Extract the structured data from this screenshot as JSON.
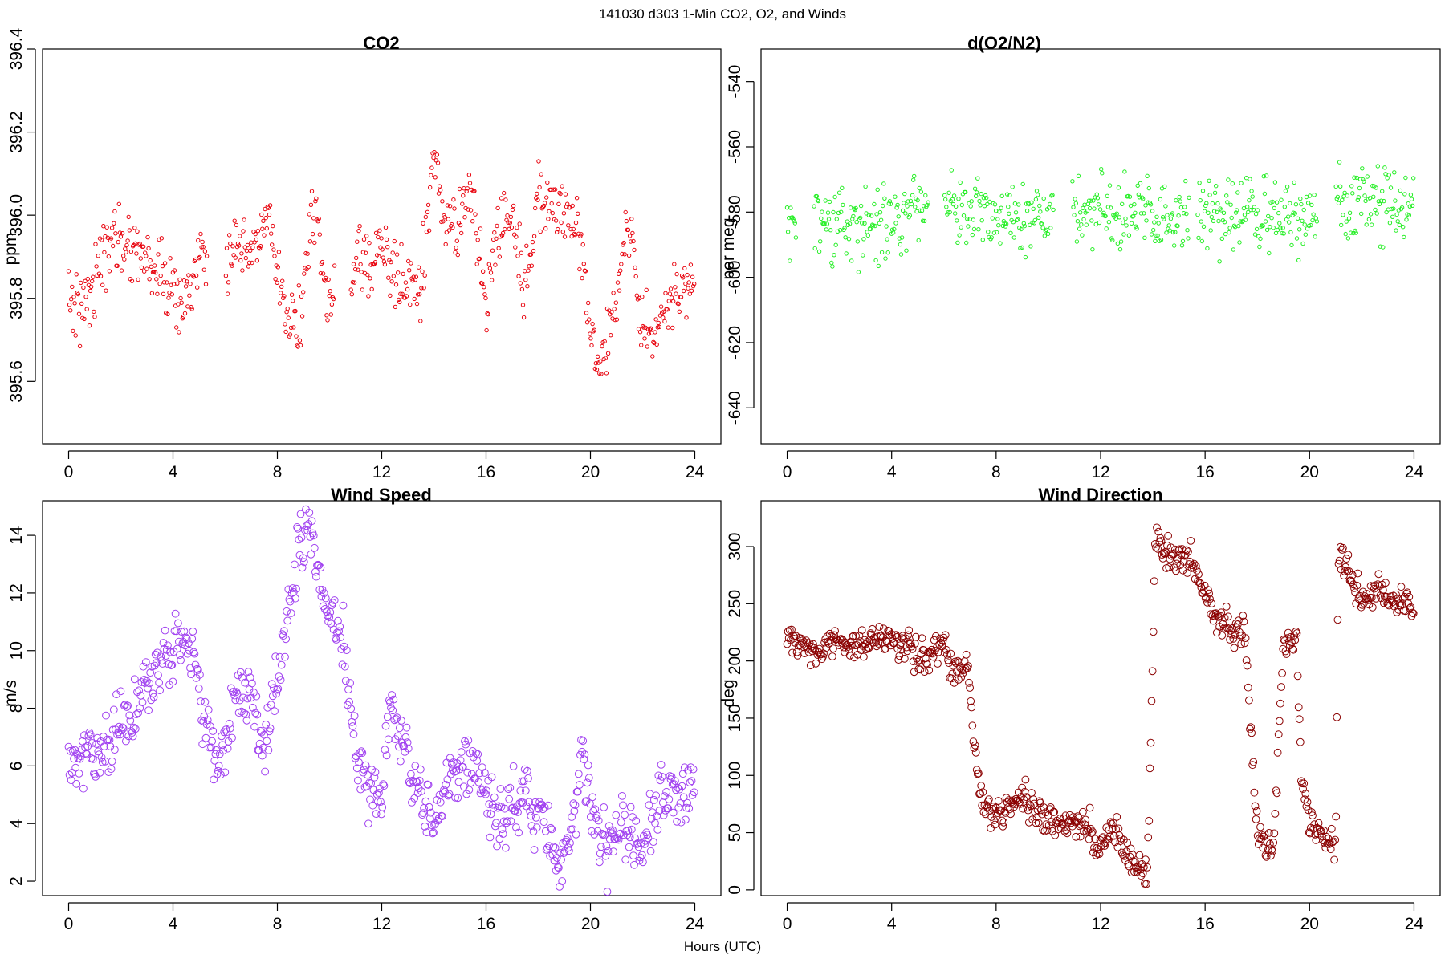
{
  "figure": {
    "title": "141030   d303   1-Min CO2, O2, and Winds",
    "xlabel": "Hours (UTC)"
  },
  "chart_data": [
    {
      "type": "scatter",
      "title": "CO2",
      "xlabel": "",
      "ylabel": "ppm",
      "xlim": [
        -1,
        25
      ],
      "ylim": [
        395.45,
        396.4
      ],
      "xticks": [
        0,
        4,
        8,
        12,
        16,
        20,
        24
      ],
      "yticks": [
        395.6,
        395.8,
        396.0,
        396.2,
        396.4
      ],
      "ytick_labels": [
        "395.6",
        "395.8",
        "396.0",
        "396.2",
        "396.4"
      ],
      "ytick_rotated": true,
      "marker": "small open circle",
      "color": "#e8000b",
      "x_start": 0,
      "x_end": 24,
      "x_step": 0.0333,
      "noise": 0.04,
      "gaps": [
        [
          5.3,
          6.0
        ],
        [
          10.2,
          10.8
        ]
      ],
      "profile": [
        [
          0,
          395.8
        ],
        [
          0.5,
          395.78
        ],
        [
          1,
          395.85
        ],
        [
          1.7,
          395.95
        ],
        [
          2.5,
          395.93
        ],
        [
          3.5,
          395.86
        ],
        [
          4.3,
          395.78
        ],
        [
          4.8,
          395.85
        ],
        [
          5.2,
          395.9
        ],
        [
          6,
          395.9
        ],
        [
          7,
          395.9
        ],
        [
          7.6,
          396.0
        ],
        [
          8.2,
          395.78
        ],
        [
          8.8,
          395.72
        ],
        [
          9.4,
          396.05
        ],
        [
          9.8,
          395.8
        ],
        [
          10.2,
          395.8
        ],
        [
          10.8,
          395.85
        ],
        [
          11.5,
          395.9
        ],
        [
          12.2,
          395.9
        ],
        [
          12.8,
          395.83
        ],
        [
          13.5,
          395.82
        ],
        [
          14,
          396.15
        ],
        [
          14.5,
          395.95
        ],
        [
          15,
          396.0
        ],
        [
          15.5,
          396.05
        ],
        [
          16,
          395.75
        ],
        [
          16.5,
          396.0
        ],
        [
          17,
          396.0
        ],
        [
          17.5,
          395.82
        ],
        [
          18,
          396.05
        ],
        [
          19,
          396.0
        ],
        [
          19.5,
          396.0
        ],
        [
          20,
          395.72
        ],
        [
          20.3,
          395.6
        ],
        [
          21.5,
          396.0
        ],
        [
          22,
          395.72
        ],
        [
          22.5,
          395.72
        ],
        [
          23,
          395.78
        ],
        [
          24,
          395.85
        ]
      ]
    },
    {
      "type": "scatter",
      "title": "d(O2/N2)",
      "xlabel": "",
      "ylabel": "per meg",
      "xlim": [
        -1,
        25
      ],
      "ylim": [
        -651,
        -530
      ],
      "xticks": [
        0,
        4,
        8,
        12,
        16,
        20,
        24
      ],
      "yticks": [
        -640,
        -620,
        -600,
        -580,
        -560,
        -540
      ],
      "ytick_labels": [
        "-640",
        "-620",
        "-600",
        "-580",
        "-560",
        "-540"
      ],
      "ytick_rotated": true,
      "marker": "small open circle",
      "color": "#22ee22",
      "x_start": 0,
      "x_end": 24,
      "x_step": 0.0333,
      "noise": 5.5,
      "gaps": [
        [
          0.35,
          1.0
        ],
        [
          5.4,
          6.0
        ],
        [
          10.2,
          10.9
        ],
        [
          15.4,
          15.7
        ],
        [
          20.3,
          21.0
        ]
      ],
      "profile": [
        [
          0,
          -582
        ],
        [
          1,
          -585
        ],
        [
          3,
          -584
        ],
        [
          4.5,
          -580
        ],
        [
          5.4,
          -576
        ],
        [
          6,
          -575
        ],
        [
          7,
          -579
        ],
        [
          10,
          -582
        ],
        [
          11,
          -580
        ],
        [
          15.4,
          -582
        ],
        [
          15.7,
          -581
        ],
        [
          20.3,
          -582
        ],
        [
          21,
          -578
        ],
        [
          24,
          -578
        ]
      ]
    },
    {
      "type": "scatter",
      "title": "Wind Speed",
      "xlabel": "",
      "ylabel": "m/s",
      "xlim": [
        -1,
        25
      ],
      "ylim": [
        1.5,
        15.2
      ],
      "xticks": [
        0,
        4,
        8,
        12,
        16,
        20,
        24
      ],
      "yticks": [
        2,
        4,
        6,
        8,
        10,
        12,
        14
      ],
      "ytick_labels": [
        "2",
        "4",
        "6",
        "8",
        "10",
        "12",
        "14"
      ],
      "ytick_rotated": true,
      "marker": "open circle",
      "color": "#a040f0",
      "x_start": 0,
      "x_end": 24,
      "x_step": 0.0333,
      "noise": 0.55,
      "gaps": [],
      "profile": [
        [
          0,
          6
        ],
        [
          1,
          6.3
        ],
        [
          2,
          7.2
        ],
        [
          3,
          8.6
        ],
        [
          4,
          10
        ],
        [
          4.2,
          11
        ],
        [
          4.8,
          9.5
        ],
        [
          5.3,
          7.2
        ],
        [
          5.8,
          6
        ],
        [
          6.5,
          8.8
        ],
        [
          7,
          8.2
        ],
        [
          7.5,
          6.5
        ],
        [
          8,
          9
        ],
        [
          8.3,
          11
        ],
        [
          8.8,
          13.5
        ],
        [
          9.2,
          14.2
        ],
        [
          9.6,
          12.5
        ],
        [
          10,
          11.5
        ],
        [
          10.5,
          10.5
        ],
        [
          11,
          6.5
        ],
        [
          11.5,
          5.5
        ],
        [
          12,
          4.5
        ],
        [
          12.3,
          8.5
        ],
        [
          12.8,
          7
        ],
        [
          13.5,
          4.5
        ],
        [
          14,
          4
        ],
        [
          14.5,
          5.5
        ],
        [
          15,
          6
        ],
        [
          15.5,
          6
        ],
        [
          16,
          5
        ],
        [
          16.5,
          4.2
        ],
        [
          17,
          4.5
        ],
        [
          17.5,
          4.8
        ],
        [
          18,
          4.2
        ],
        [
          18.5,
          3.5
        ],
        [
          18.8,
          2.3
        ],
        [
          19.3,
          4
        ],
        [
          19.7,
          6.5
        ],
        [
          20.2,
          4
        ],
        [
          20.6,
          2.8
        ],
        [
          21,
          3.5
        ],
        [
          21.5,
          3.8
        ],
        [
          22,
          3
        ],
        [
          22.5,
          4.5
        ],
        [
          23,
          5
        ],
        [
          23.5,
          5
        ],
        [
          24,
          5.5
        ]
      ]
    },
    {
      "type": "scatter",
      "title": "Wind Direction",
      "xlabel": "",
      "ylabel": "deg",
      "xlim": [
        -1,
        25
      ],
      "ylim": [
        -5,
        340
      ],
      "xticks": [
        0,
        4,
        8,
        12,
        16,
        20,
        24
      ],
      "yticks": [
        0,
        50,
        100,
        150,
        200,
        250,
        300
      ],
      "ytick_labels": [
        "0",
        "50",
        "100",
        "150",
        "200",
        "250",
        "300"
      ],
      "ytick_rotated": true,
      "marker": "open circle",
      "color": "#8b0000",
      "x_start": 0,
      "x_end": 24,
      "x_step": 0.0333,
      "noise": 7,
      "gaps": [],
      "profile": [
        [
          0,
          225
        ],
        [
          1,
          208
        ],
        [
          1.5,
          212
        ],
        [
          2,
          218
        ],
        [
          3,
          215
        ],
        [
          4,
          220
        ],
        [
          4.7,
          210
        ],
        [
          5.3,
          202
        ],
        [
          6,
          218
        ],
        [
          6.3,
          192
        ],
        [
          6.9,
          192
        ],
        [
          7.2,
          120
        ],
        [
          7.4,
          80
        ],
        [
          8,
          65
        ],
        [
          9,
          80
        ],
        [
          9.5,
          68
        ],
        [
          10.5,
          57
        ],
        [
          11.5,
          55
        ],
        [
          12,
          40
        ],
        [
          12.5,
          55
        ],
        [
          13,
          30
        ],
        [
          13.8,
          12
        ],
        [
          14.1,
          315
        ],
        [
          14.6,
          290
        ],
        [
          15.2,
          290
        ],
        [
          15.7,
          280
        ],
        [
          16,
          255
        ],
        [
          16.5,
          235
        ],
        [
          17,
          225
        ],
        [
          17.5,
          230
        ],
        [
          18,
          50
        ],
        [
          18.6,
          35
        ],
        [
          19,
          215
        ],
        [
          19.5,
          220
        ],
        [
          19.7,
          95
        ],
        [
          20,
          60
        ],
        [
          20.5,
          45
        ],
        [
          21,
          30
        ],
        [
          21.1,
          295
        ],
        [
          21.5,
          280
        ],
        [
          22,
          250
        ],
        [
          22.5,
          262
        ],
        [
          23,
          255
        ],
        [
          24,
          250
        ]
      ]
    }
  ]
}
